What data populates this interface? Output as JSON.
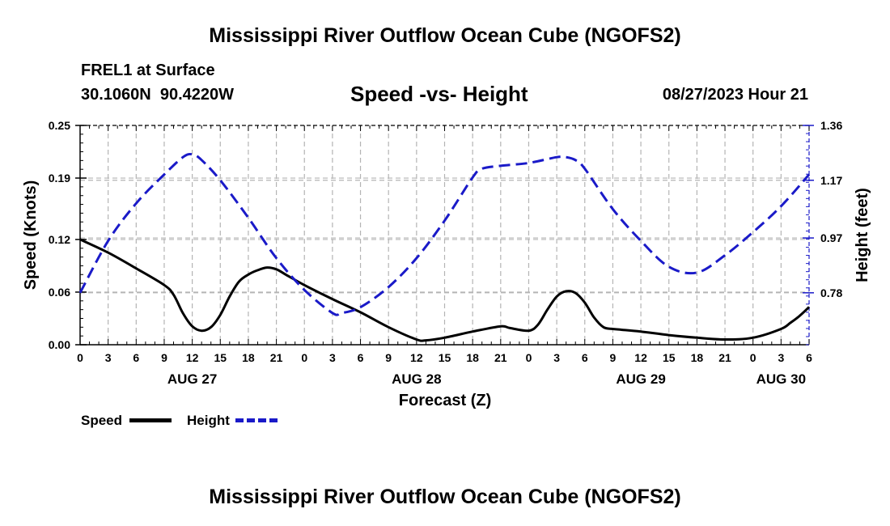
{
  "page": {
    "title_top": "Mississippi River Outflow Ocean Cube (NGOFS2)",
    "title_bottom": "Mississippi River Outflow Ocean Cube (NGOFS2)",
    "station": "FREL1 at Surface",
    "coords": "30.1060N  90.4220W",
    "subtitle": "Speed -vs- Height",
    "datetime": "08/27/2023 Hour 21"
  },
  "legend": {
    "speed_label": "Speed",
    "height_label": "Height",
    "speed_color": "#000000",
    "height_color": "#1a1ac8"
  },
  "chart_data": {
    "type": "line",
    "title": "Speed -vs- Height",
    "xlabel": "Forecast (Z)",
    "ylabel": "Speed (Knots)",
    "y2label": "Height (feet)",
    "x_unit": "hours since 08/27 00Z",
    "xlim": [
      0,
      78
    ],
    "ylim": [
      0,
      0.25
    ],
    "y2lim": [
      0.6,
      1.36
    ],
    "grid": true,
    "x_ticks": [
      0,
      3,
      6,
      9,
      12,
      15,
      18,
      21,
      24,
      27,
      30,
      33,
      36,
      39,
      42,
      45,
      48,
      51,
      54,
      57,
      60,
      63,
      66,
      69,
      72,
      75,
      78
    ],
    "x_tick_labels": [
      "0",
      "3",
      "6",
      "9",
      "12",
      "15",
      "18",
      "21",
      "0",
      "3",
      "6",
      "9",
      "12",
      "15",
      "18",
      "21",
      "0",
      "3",
      "6",
      "9",
      "12",
      "15",
      "18",
      "21",
      "0",
      "3",
      "6"
    ],
    "day_labels": [
      {
        "x": 12,
        "label": "AUG 27"
      },
      {
        "x": 36,
        "label": "AUG 28"
      },
      {
        "x": 60,
        "label": "AUG 29"
      },
      {
        "x": 75,
        "label": "AUG 30"
      }
    ],
    "y_ticks": [
      0,
      0.06,
      0.12,
      0.19,
      0.25
    ],
    "y_tick_labels": [
      "0.00",
      "0.06",
      "0.12",
      "0.19",
      "0.25"
    ],
    "y2_ticks": [
      0.78,
      0.97,
      1.17,
      1.36
    ],
    "y2_tick_labels": [
      "0.78",
      "0.97",
      "1.17",
      "1.36"
    ],
    "series": [
      {
        "name": "Speed",
        "axis": "left",
        "style": "solid",
        "color": "#000000",
        "x": [
          0,
          3,
          6,
          9,
          10,
          11,
          12,
          13,
          14,
          15,
          16,
          17,
          18,
          19,
          20,
          21,
          22,
          24,
          27,
          30,
          33,
          36,
          37,
          39,
          42,
          45,
          46,
          48,
          49,
          50,
          51,
          52,
          53,
          54,
          55,
          56,
          57,
          58,
          60,
          63,
          66,
          69,
          72,
          75,
          76,
          77,
          78
        ],
        "y": [
          0.12,
          0.105,
          0.087,
          0.068,
          0.057,
          0.036,
          0.021,
          0.016,
          0.02,
          0.034,
          0.055,
          0.072,
          0.08,
          0.085,
          0.088,
          0.086,
          0.08,
          0.068,
          0.052,
          0.037,
          0.02,
          0.006,
          0.005,
          0.008,
          0.015,
          0.021,
          0.019,
          0.016,
          0.023,
          0.04,
          0.055,
          0.061,
          0.059,
          0.048,
          0.031,
          0.02,
          0.018,
          0.017,
          0.015,
          0.011,
          0.008,
          0.006,
          0.008,
          0.018,
          0.025,
          0.033,
          0.043
        ]
      },
      {
        "name": "Height",
        "axis": "right",
        "style": "dashed",
        "color": "#1a1ac8",
        "x": [
          0,
          3,
          6,
          9,
          11,
          12,
          13,
          15,
          18,
          21,
          24,
          27,
          28,
          30,
          33,
          36,
          39,
          42,
          43,
          45,
          48,
          51,
          52,
          53,
          54,
          57,
          60,
          63,
          66,
          69,
          72,
          75,
          78
        ],
        "y": [
          0.78,
          0.96,
          1.09,
          1.19,
          1.25,
          1.26,
          1.24,
          1.17,
          1.04,
          0.9,
          0.79,
          0.71,
          0.71,
          0.73,
          0.8,
          0.9,
          1.03,
          1.18,
          1.21,
          1.22,
          1.23,
          1.25,
          1.25,
          1.24,
          1.21,
          1.07,
          0.96,
          0.87,
          0.85,
          0.91,
          0.99,
          1.08,
          1.19
        ]
      }
    ]
  }
}
